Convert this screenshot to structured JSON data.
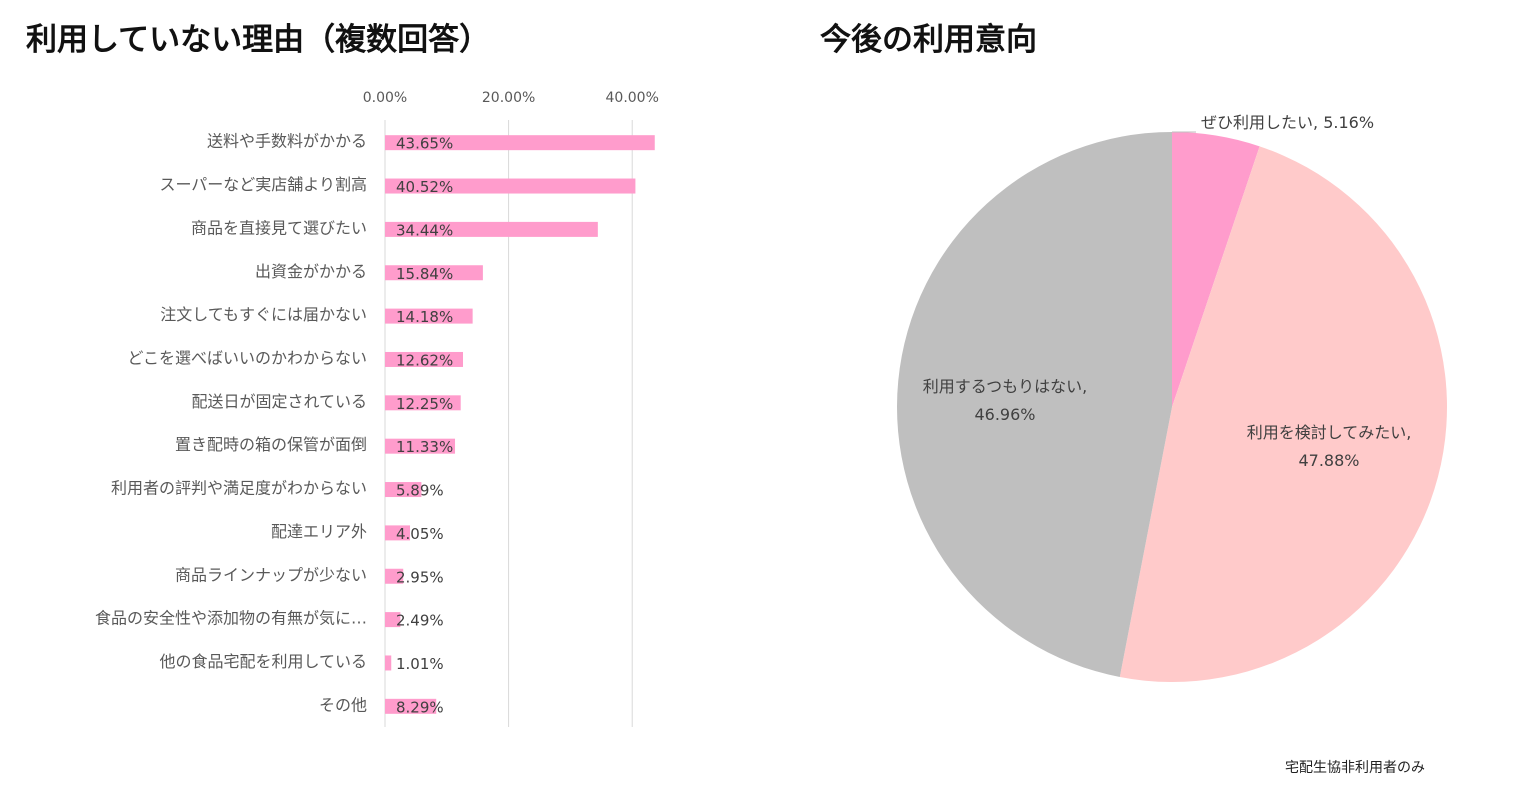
{
  "charts": {
    "bar_title": "利用していない理由（複数回答）",
    "pie_title": "今後の利用意向",
    "note": "宅配生協非利用者のみ"
  },
  "colors": {
    "bar": "#ff9ccc",
    "pie_yes": "#ff9ccc",
    "pie_consider": "#ffcaca",
    "pie_no": "#bfbfbf",
    "grid": "#d9d9d9",
    "axis_text": "#595959",
    "label_text": "#404040"
  },
  "chart_data": [
    {
      "type": "bar",
      "orientation": "horizontal",
      "title": "利用していない理由（複数回答）",
      "xlim": [
        0,
        0.44
      ],
      "x_ticks": [
        "0.00%",
        "20.00%",
        "40.00%"
      ],
      "x_tick_values": [
        0,
        0.2,
        0.4
      ],
      "grid": true,
      "categories": [
        "送料や手数料がかかる",
        "スーパーなど実店舗より割高",
        "商品を直接見て選びたい",
        "出資金がかかる",
        "注文してもすぐには届かない",
        "どこを選べばいいのかわからない",
        "配送日が固定されている",
        "置き配時の箱の保管が面倒",
        "利用者の評判や満足度がわからない",
        "配達エリア外",
        "商品ラインナップが少ない",
        "食品の安全性や添加物の有無が気に…",
        "他の食品宅配を利用している",
        "その他"
      ],
      "values": [
        0.4365,
        0.4052,
        0.3444,
        0.1584,
        0.1418,
        0.1262,
        0.1225,
        0.1133,
        0.0589,
        0.0405,
        0.0295,
        0.0249,
        0.0101,
        0.0829
      ],
      "data_labels": [
        "43.65%",
        "40.52%",
        "34.44%",
        "15.84%",
        "14.18%",
        "12.62%",
        "12.25%",
        "11.33%",
        "5.89%",
        "4.05%",
        "2.95%",
        "2.49%",
        "1.01%",
        "8.29%"
      ]
    },
    {
      "type": "pie",
      "title": "今後の利用意向",
      "slices": [
        {
          "label": "ぜひ利用したい",
          "value": 5.16,
          "value_label": "5.16%",
          "color": "#ff9ccc"
        },
        {
          "label": "利用を検討してみたい",
          "value": 47.88,
          "value_label": "47.88%",
          "color": "#ffcaca"
        },
        {
          "label": "利用するつもりはない",
          "value": 46.96,
          "value_label": "46.96%",
          "color": "#bfbfbf"
        }
      ]
    }
  ]
}
